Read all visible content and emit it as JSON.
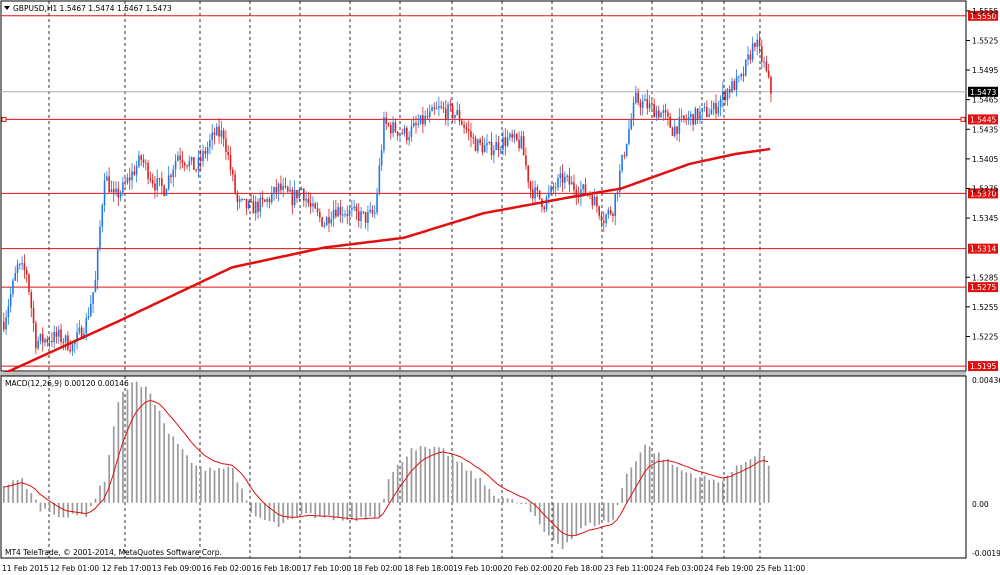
{
  "header": {
    "symbol_text": "GBPUSD,H1  1.5467 1.5474 1.5467 1.5473"
  },
  "macd": {
    "label": "MACD(12,26,9) 0.00120 0.00146",
    "axis_labels": [
      "0.00436",
      "0.00",
      "-0.0019"
    ]
  },
  "watermark": "MT4 TeleTrade, © 2001-2014, MetaQuotes Software Corp.",
  "price_axis": {
    "ticks": [
      "1.5555",
      "1.5525",
      "1.5495",
      "1.5465",
      "1.5435",
      "1.5405",
      "1.5375",
      "1.5345",
      "1.5285",
      "1.5255",
      "1.5225"
    ],
    "current_price": "1.5473"
  },
  "levels": [
    {
      "label": "1.5550",
      "price": 1.555
    },
    {
      "label": "1.5445",
      "price": 1.5445
    },
    {
      "label": "1.5370",
      "price": 1.537
    },
    {
      "label": "1.5314",
      "price": 1.5314
    },
    {
      "label": "1.5275",
      "price": 1.5275
    },
    {
      "label": "1.5195",
      "price": 1.5195
    }
  ],
  "time_axis": [
    "11 Feb 2015",
    "12 Feb 01:00",
    "12 Feb 17:00",
    "13 Feb 09:00",
    "16 Feb 02:00",
    "16 Feb 18:00",
    "17 Feb 10:00",
    "18 Feb 02:00",
    "18 Feb 18:00",
    "19 Feb 10:00",
    "20 Feb 02:00",
    "20 Feb 18:00",
    "23 Feb 11:00",
    "24 Feb 03:00",
    "24 Feb 19:00",
    "25 Feb 11:00"
  ],
  "colors": {
    "bull": "#1e78e6",
    "bear": "#dc1e1e",
    "ma": "#e01010",
    "level": "#e01010",
    "grid": "#000000",
    "histogram": "#9a9a9a",
    "signal": "#e01010"
  },
  "chart_data": {
    "type": "candlestick",
    "symbol": "GBPUSD",
    "timeframe": "H1",
    "anchors": [
      [
        0,
        1.524
      ],
      [
        6,
        1.5295
      ],
      [
        10,
        1.529
      ],
      [
        14,
        1.522
      ],
      [
        24,
        1.5225
      ],
      [
        30,
        1.5215
      ],
      [
        36,
        1.524
      ],
      [
        40,
        1.528
      ],
      [
        44,
        1.539
      ],
      [
        48,
        1.5365
      ],
      [
        52,
        1.5375
      ],
      [
        60,
        1.5405
      ],
      [
        66,
        1.538
      ],
      [
        70,
        1.5375
      ],
      [
        76,
        1.541
      ],
      [
        84,
        1.5395
      ],
      [
        92,
        1.543
      ],
      [
        96,
        1.543
      ],
      [
        102,
        1.536
      ],
      [
        108,
        1.5355
      ],
      [
        114,
        1.536
      ],
      [
        120,
        1.5375
      ],
      [
        126,
        1.5365
      ],
      [
        130,
        1.5375
      ],
      [
        134,
        1.5355
      ],
      [
        140,
        1.534
      ],
      [
        144,
        1.5355
      ],
      [
        152,
        1.535
      ],
      [
        158,
        1.5345
      ],
      [
        162,
        1.535
      ],
      [
        166,
        1.544
      ],
      [
        176,
        1.543
      ],
      [
        184,
        1.5445
      ],
      [
        190,
        1.5455
      ],
      [
        198,
        1.545
      ],
      [
        206,
        1.542
      ],
      [
        212,
        1.5415
      ],
      [
        220,
        1.5425
      ],
      [
        226,
        1.542
      ],
      [
        230,
        1.5375
      ],
      [
        236,
        1.536
      ],
      [
        240,
        1.5375
      ],
      [
        244,
        1.5385
      ],
      [
        250,
        1.5375
      ],
      [
        256,
        1.537
      ],
      [
        262,
        1.5345
      ],
      [
        266,
        1.5355
      ],
      [
        272,
        1.5425
      ],
      [
        276,
        1.5465
      ],
      [
        284,
        1.5455
      ],
      [
        288,
        1.545
      ],
      [
        292,
        1.5435
      ],
      [
        298,
        1.5445
      ],
      [
        304,
        1.545
      ],
      [
        310,
        1.5455
      ],
      [
        316,
        1.5475
      ],
      [
        322,
        1.5485
      ],
      [
        328,
        1.5525
      ],
      [
        332,
        1.55
      ],
      [
        335,
        1.5473
      ]
    ],
    "ma_start": 1.5187,
    "ma_anchors": [
      [
        0,
        1.5187
      ],
      [
        50,
        1.524
      ],
      [
        100,
        1.5295
      ],
      [
        140,
        1.5315
      ],
      [
        175,
        1.5325
      ],
      [
        210,
        1.535
      ],
      [
        245,
        1.5365
      ],
      [
        270,
        1.5375
      ],
      [
        300,
        1.54
      ],
      [
        320,
        1.541
      ],
      [
        335,
        1.5415
      ]
    ],
    "macd_anchors": [
      [
        0,
        0.0006
      ],
      [
        8,
        0.0008
      ],
      [
        16,
        -0.0002
      ],
      [
        28,
        -0.0005
      ],
      [
        36,
        -0.0004
      ],
      [
        44,
        0.0008
      ],
      [
        50,
        0.0035
      ],
      [
        56,
        0.0042
      ],
      [
        64,
        0.0038
      ],
      [
        72,
        0.0024
      ],
      [
        84,
        0.0012
      ],
      [
        100,
        0.0012
      ],
      [
        108,
        -0.0004
      ],
      [
        120,
        -0.0008
      ],
      [
        132,
        -0.0004
      ],
      [
        150,
        -0.0006
      ],
      [
        164,
        -0.0004
      ],
      [
        168,
        0.0008
      ],
      [
        178,
        0.0019
      ],
      [
        192,
        0.0018
      ],
      [
        206,
        0.0009
      ],
      [
        216,
        0.0002
      ],
      [
        228,
        -0.0001
      ],
      [
        236,
        -0.001
      ],
      [
        244,
        -0.0015
      ],
      [
        254,
        -0.0008
      ],
      [
        266,
        -0.0006
      ],
      [
        272,
        0.001
      ],
      [
        280,
        0.002
      ],
      [
        296,
        0.0011
      ],
      [
        312,
        0.0007
      ],
      [
        330,
        0.0018
      ],
      [
        335,
        0.0012
      ]
    ],
    "macd_value": 0.0012,
    "signal_value": 0.00146,
    "price_range": [
      1.519,
      1.5565
    ],
    "macd_range": [
      -0.0019,
      0.00436
    ]
  }
}
